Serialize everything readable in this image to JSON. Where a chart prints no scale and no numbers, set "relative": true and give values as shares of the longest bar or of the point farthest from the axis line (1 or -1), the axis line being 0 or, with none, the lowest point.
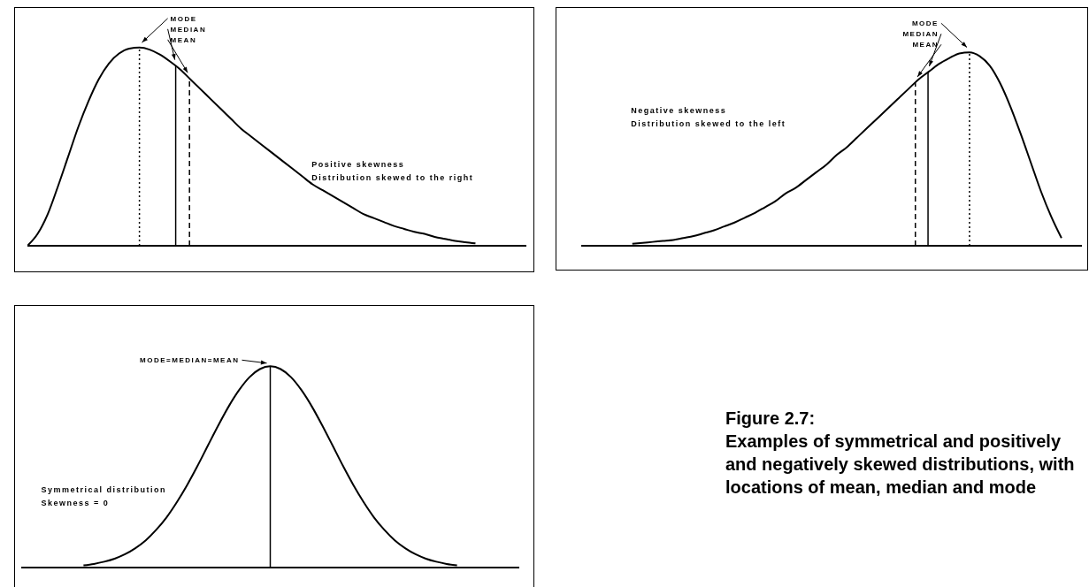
{
  "chart_data": [
    {
      "type": "line",
      "relative": true,
      "categories": [
        null,
        null,
        null,
        null,
        null,
        null,
        null,
        null,
        null,
        null,
        null,
        null,
        null,
        null,
        null,
        null,
        null,
        null,
        null,
        null,
        null,
        null,
        null,
        null,
        null,
        null,
        null,
        null,
        null,
        null,
        null,
        null,
        null,
        null,
        null,
        null,
        null,
        null,
        null,
        null,
        null,
        null,
        null,
        null,
        null,
        null,
        null,
        null,
        null,
        null
      ],
      "series": [
        {
          "color": "#000000",
          "values": [
            0,
            0.06,
            0.16,
            0.3,
            0.45,
            0.6,
            0.73,
            0.84,
            0.92,
            0.97,
            0.995,
            1,
            0.99,
            0.965,
            0.93,
            0.89,
            0.84,
            0.79,
            0.74,
            0.69,
            0.64,
            0.59,
            0.55,
            0.51,
            0.47,
            0.43,
            0.39,
            0.35,
            0.31,
            0.28,
            0.25,
            0.22,
            0.19,
            0.16,
            0.14,
            0.12,
            0.1,
            0.085,
            0.07,
            0.06,
            0.045,
            0.035,
            0.025,
            0.018,
            0.012,
            null,
            null,
            null,
            null,
            null
          ]
        }
      ],
      "annotations": [
        "MODE",
        "MEDIAN",
        "MEAN",
        "Positive skewness",
        "Distribution skewed to the right"
      ]
    },
    {
      "type": "line",
      "relative": true,
      "categories": [
        null,
        null,
        null,
        null,
        null,
        null,
        null,
        null,
        null,
        null,
        null,
        null,
        null,
        null,
        null,
        null,
        null,
        null,
        null,
        null,
        null,
        null,
        null,
        null,
        null,
        null,
        null,
        null,
        null,
        null,
        null,
        null,
        null,
        null,
        null,
        null,
        null,
        null,
        null,
        null,
        null,
        null,
        null,
        null,
        null,
        null,
        null,
        null,
        null,
        null
      ],
      "series": [
        {
          "color": "#000000",
          "values": [
            null,
            null,
            null,
            null,
            null,
            0.01,
            0.015,
            0.02,
            0.025,
            0.03,
            0.04,
            0.05,
            0.065,
            0.08,
            0.1,
            0.12,
            0.145,
            0.17,
            0.2,
            0.23,
            0.27,
            0.3,
            0.34,
            0.38,
            0.42,
            0.47,
            0.51,
            0.56,
            0.61,
            0.66,
            0.71,
            0.76,
            0.81,
            0.86,
            0.9,
            0.94,
            0.97,
            0.995,
            1,
            0.98,
            0.93,
            0.84,
            0.72,
            0.58,
            0.43,
            0.28,
            0.15,
            0.04,
            null,
            null
          ]
        }
      ],
      "annotations": [
        "MODE",
        "MEDIAN",
        "MEAN",
        "Negative skewness",
        "Distribution  skewed to the left"
      ]
    },
    {
      "type": "line",
      "relative": true,
      "categories": [
        null,
        null,
        null,
        null,
        null,
        null,
        null,
        null,
        null,
        null,
        null,
        null,
        null,
        null,
        null,
        null,
        null,
        null,
        null,
        null,
        null,
        null,
        null,
        null,
        null,
        null,
        null,
        null,
        null,
        null,
        null,
        null,
        null,
        null,
        null,
        null,
        null,
        null,
        null,
        null,
        null,
        null,
        null,
        null,
        null,
        null,
        null,
        null,
        null
      ],
      "series": [
        {
          "color": "#000000",
          "values": [
            null,
            null,
            null,
            null,
            null,
            null,
            0.011,
            0.018,
            0.029,
            0.044,
            0.066,
            0.096,
            0.135,
            0.187,
            0.249,
            0.325,
            0.411,
            0.506,
            0.607,
            0.707,
            0.801,
            0.882,
            0.946,
            0.986,
            1,
            0.986,
            0.946,
            0.882,
            0.801,
            0.707,
            0.607,
            0.506,
            0.411,
            0.325,
            0.249,
            0.187,
            0.135,
            0.096,
            0.066,
            0.044,
            0.029,
            0.018,
            0.011,
            null,
            null,
            null,
            null,
            null,
            null
          ]
        }
      ],
      "annotations": [
        "MODE=MEDIAN=MEAN",
        "Symmetrical distribution",
        "Skewness = 0"
      ]
    },
    {
      "type": "other",
      "title": "Figure 2.7:",
      "subtitle": "Examples of symmetrical and positively and negatively skewed distributions, with locations of mean, median and mode"
    }
  ]
}
